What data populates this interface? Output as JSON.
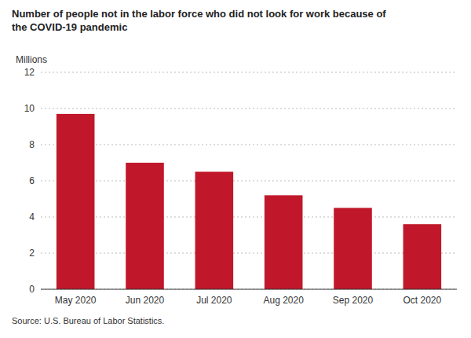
{
  "chart_data": {
    "type": "bar",
    "title": "Number of people not in the labor force who did not look for work because of\nthe COVID-19 pandemic",
    "ylabel": "Millions",
    "source": "Source: U.S. Bureau of Labor Statistics.",
    "categories": [
      "May 2020",
      "Jun 2020",
      "Jul 2020",
      "Aug 2020",
      "Sep 2020",
      "Oct 2020"
    ],
    "values": [
      9.7,
      7.0,
      6.5,
      5.2,
      4.5,
      3.6
    ],
    "color": "#c0182a",
    "ylim": [
      0,
      12
    ],
    "yticks": [
      0,
      2,
      4,
      6,
      8,
      10,
      12
    ],
    "grid": true
  }
}
